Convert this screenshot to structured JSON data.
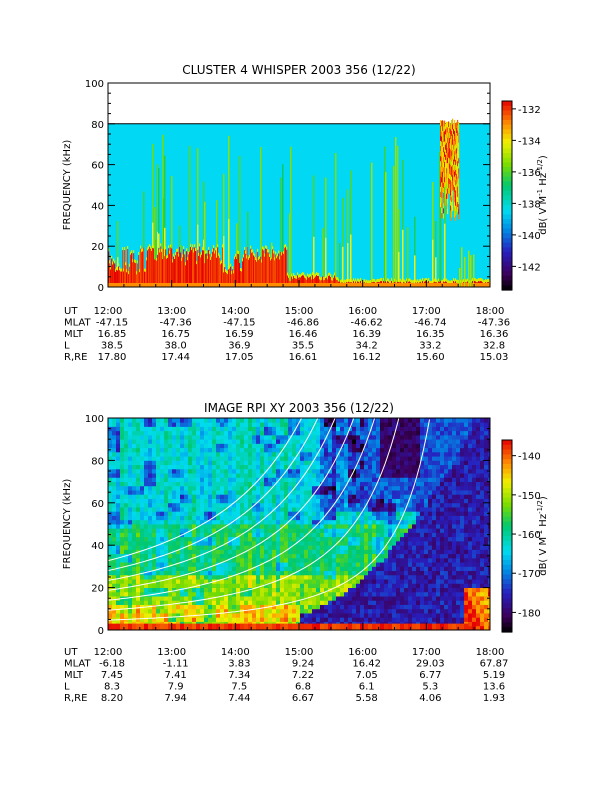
{
  "chart_data": [
    {
      "type": "heatmap",
      "title": "CLUSTER 4 WHISPER 2003 356 (12/22)",
      "ylabel": "FREQUENCY (kHz)",
      "ylim": [
        0,
        100
      ],
      "y_ticks": [
        "0",
        "20",
        "40",
        "60",
        "80",
        "100"
      ],
      "data_ceiling_khz": 80,
      "x_ticks": [
        "12:00",
        "13:00",
        "14:00",
        "15:00",
        "16:00",
        "17:00",
        "18:00"
      ],
      "colorbar": {
        "label": "dB( V M⁻¹ Hz⁻¹ᐟ²)",
        "label_text": "dB( V M",
        "label_sup1": "-1",
        "label_mid": " Hz",
        "label_sup2": "-1/2",
        "label_end": ")",
        "range": [
          -143.5,
          -131.5
        ],
        "ticks": [
          "-132",
          "-134",
          "-136",
          "-138",
          "-140",
          "-142"
        ],
        "tick_values": [
          -132,
          -134,
          -136,
          -138,
          -140,
          -142
        ]
      },
      "ephemeris": [
        {
          "label": "UT",
          "values": [
            "12:00",
            "13:00",
            "14:00",
            "15:00",
            "16:00",
            "17:00",
            "18:00"
          ]
        },
        {
          "label": "MLAT",
          "values": [
            "-47.15",
            "-47.36",
            "-47.15",
            "-46.86",
            "-46.62",
            "-46.74",
            "-47.36"
          ]
        },
        {
          "label": "MLT",
          "values": [
            "16.85",
            "16.75",
            "16.59",
            "16.46",
            "16.39",
            "16.35",
            "16.36"
          ]
        },
        {
          "label": "L",
          "values": [
            "38.5",
            "38.0",
            "36.9",
            "35.5",
            "34.2",
            "33.2",
            "32.8"
          ]
        },
        {
          "label": "R,RE",
          "values": [
            "17.80",
            "17.44",
            "17.05",
            "16.61",
            "16.12",
            "15.60",
            "15.03"
          ]
        }
      ]
    },
    {
      "type": "heatmap",
      "title": "IMAGE RPI XY 2003 356 (12/22)",
      "ylabel": "FREQUENCY (kHz)",
      "ylim": [
        0,
        100
      ],
      "y_ticks": [
        "0",
        "20",
        "40",
        "60",
        "80",
        "100"
      ],
      "x_ticks": [
        "12:00",
        "13:00",
        "14:00",
        "15:00",
        "16:00",
        "17:00",
        "18:00"
      ],
      "colorbar": {
        "label_text": "dB( V M",
        "label_sup1": "-1",
        "label_mid": " Hz",
        "label_sup2": "-1/2",
        "label_end": ")",
        "range": [
          -185,
          -136
        ],
        "ticks": [
          "-140",
          "-150",
          "-160",
          "-170",
          "-180"
        ],
        "tick_values": [
          -140,
          -150,
          -160,
          -170,
          -180
        ]
      },
      "ephemeris": [
        {
          "label": "UT",
          "values": [
            "12:00",
            "13:00",
            "14:00",
            "15:00",
            "16:00",
            "17:00",
            "18:00"
          ]
        },
        {
          "label": "MLAT",
          "values": [
            "-6.18",
            "-1.11",
            "3.83",
            "9.24",
            "16.42",
            "29.03",
            "67.87"
          ]
        },
        {
          "label": "MLT",
          "values": [
            "7.45",
            "7.41",
            "7.34",
            "7.22",
            "7.05",
            "6.77",
            "5.19"
          ]
        },
        {
          "label": "L",
          "values": [
            "8.3",
            "7.9",
            "7.5",
            "6.8",
            "6.1",
            "5.3",
            "13.6"
          ]
        },
        {
          "label": "R,RE",
          "values": [
            "8.20",
            "7.94",
            "7.44",
            "6.67",
            "5.58",
            "4.06",
            "1.93"
          ]
        }
      ]
    }
  ]
}
